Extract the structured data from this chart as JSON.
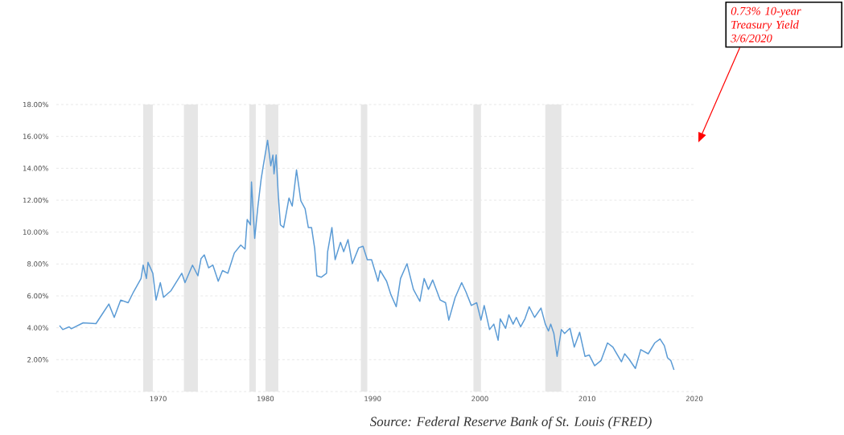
{
  "chart_data": {
    "type": "line",
    "color": "#5b9bd5",
    "x": [
      1960.8,
      1961.1,
      1961.7,
      1961.9,
      1963.0,
      1964.2,
      1964.9,
      1965.4,
      1965.9,
      1966.5,
      1967.2,
      1967.7,
      1968.4,
      1968.6,
      1968.9,
      1969.05,
      1969.5,
      1969.8,
      1970.2,
      1970.5,
      1971.2,
      1972.2,
      1972.5,
      1973.2,
      1973.7,
      1974.0,
      1974.3,
      1974.7,
      1975.1,
      1975.6,
      1976.0,
      1976.5,
      1977.1,
      1977.7,
      1978.1,
      1978.3,
      1978.6,
      1978.7,
      1979.0,
      1979.3,
      1979.6,
      1979.8,
      1980.2,
      1980.5,
      1980.7,
      1980.8,
      1981.0,
      1981.2,
      1981.4,
      1981.7,
      1982.2,
      1982.5,
      1982.9,
      1983.3,
      1983.7,
      1984.0,
      1984.3,
      1984.6,
      1984.8,
      1985.2,
      1985.7,
      1985.8,
      1986.2,
      1986.5,
      1987.0,
      1987.3,
      1987.7,
      1988.1,
      1988.7,
      1989.1,
      1989.5,
      1989.9,
      1990.5,
      1990.7,
      1991.3,
      1991.7,
      1992.2,
      1992.6,
      1993.2,
      1993.8,
      1994.4,
      1994.8,
      1995.2,
      1995.6,
      1996.3,
      1996.8,
      1997.1,
      1997.7,
      1998.3,
      1998.7,
      1999.2,
      1999.7,
      2000.1,
      2000.4,
      2000.9,
      2001.3,
      2001.7,
      2001.9,
      2002.4,
      2002.7,
      2003.1,
      2003.4,
      2003.8,
      2004.2,
      2004.6,
      2005.1,
      2005.7,
      2006.1,
      2006.4,
      2006.6,
      2006.9,
      2007.2,
      2007.6,
      2007.9,
      2008.4,
      2008.8,
      2009.3,
      2009.8,
      2010.2,
      2010.7,
      2011.3,
      2011.9,
      2012.4,
      2013.2,
      2013.5,
      2013.9,
      2014.5,
      2015.0,
      2015.7,
      2016.3,
      2016.8,
      2017.2,
      2017.5,
      2017.8,
      2018.1
    ],
    "values": [
      4.14,
      3.89,
      4.06,
      3.94,
      4.31,
      4.26,
      4.98,
      5.49,
      4.65,
      5.74,
      5.57,
      6.25,
      7.09,
      7.93,
      7.09,
      8.1,
      7.42,
      5.74,
      6.83,
      5.91,
      6.33,
      7.42,
      6.83,
      7.93,
      7.26,
      8.35,
      8.57,
      7.76,
      7.93,
      6.92,
      7.59,
      7.42,
      8.69,
      9.19,
      8.94,
      10.79,
      10.45,
      13.15,
      9.61,
      11.63,
      13.32,
      14.16,
      15.76,
      14.16,
      14.83,
      13.65,
      14.83,
      12.31,
      10.45,
      10.29,
      12.14,
      11.63,
      13.9,
      11.97,
      11.46,
      10.29,
      10.29,
      8.94,
      7.26,
      7.17,
      7.42,
      8.77,
      10.29,
      8.27,
      9.36,
      8.77,
      9.53,
      8.02,
      9.02,
      9.11,
      8.27,
      8.27,
      6.92,
      7.59,
      6.92,
      6.08,
      5.32,
      7.09,
      8.02,
      6.41,
      5.66,
      7.09,
      6.41,
      7.0,
      5.74,
      5.57,
      4.48,
      5.91,
      6.83,
      6.25,
      5.4,
      5.57,
      4.48,
      5.4,
      3.89,
      4.23,
      3.22,
      4.56,
      3.97,
      4.81,
      4.23,
      4.65,
      4.06,
      4.56,
      5.32,
      4.65,
      5.24,
      4.23,
      3.8,
      4.23,
      3.64,
      2.21,
      3.89,
      3.64,
      3.97,
      2.79,
      3.72,
      2.21,
      2.29,
      1.62,
      1.95,
      3.05,
      2.79,
      1.87,
      2.37,
      2.04,
      1.45,
      2.63,
      2.37,
      3.05,
      3.3,
      2.88,
      2.12,
      1.95,
      1.36
    ],
    "xlim": [
      1960.5,
      2020
    ],
    "ylim": [
      0,
      18
    ],
    "xticks": [
      1970,
      1980,
      1990,
      2000,
      2010,
      2020
    ],
    "yticks": [
      {
        "value": 0,
        "label": null
      },
      {
        "value": 2,
        "label": "2.00%"
      },
      {
        "value": 4,
        "label": "4.00%"
      },
      {
        "value": 6,
        "label": "6.00%"
      },
      {
        "value": 8,
        "label": "8.00%"
      },
      {
        "value": 10,
        "label": "10.00%"
      },
      {
        "value": 12,
        "label": "12.00%"
      },
      {
        "value": 14,
        "label": "14.00%"
      },
      {
        "value": 16,
        "label": "16.00%"
      },
      {
        "value": 18,
        "label": "18.00%"
      }
    ],
    "grid": "y",
    "bands": [
      {
        "axis": "x",
        "from": 1968.6,
        "to": 1969.5,
        "color": "#e6e6e6"
      },
      {
        "axis": "x",
        "from": 1972.4,
        "to": 1973.7,
        "color": "#e6e6e6"
      },
      {
        "axis": "x",
        "from": 1978.5,
        "to": 1979.1,
        "color": "#e6e6e6"
      },
      {
        "axis": "x",
        "from": 1980.0,
        "to": 1981.2,
        "color": "#e6e6e6"
      },
      {
        "axis": "x",
        "from": 1988.9,
        "to": 1989.5,
        "color": "#e6e6e6"
      },
      {
        "axis": "x",
        "from": 1999.4,
        "to": 2000.1,
        "color": "#e6e6e6"
      },
      {
        "axis": "x",
        "from": 2006.1,
        "to": 2007.6,
        "color": "#e6e6e6"
      }
    ],
    "annotations": [
      "0.73% 10-year Treasury Yield 3/6/2020",
      "Source:  Federal Reserve Bank of St. Louis (FRED)"
    ]
  }
}
